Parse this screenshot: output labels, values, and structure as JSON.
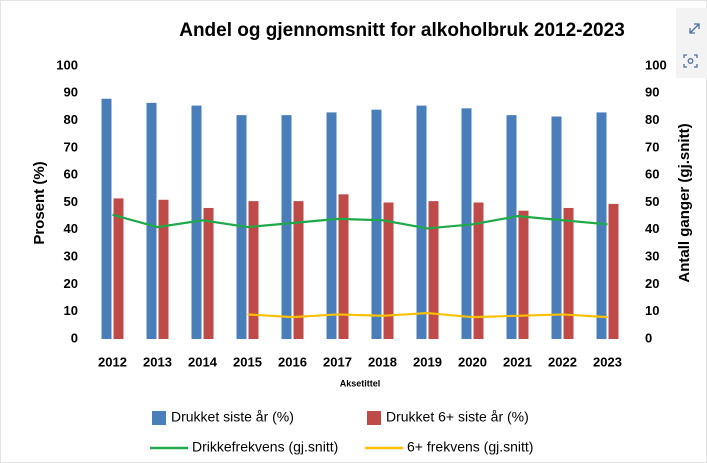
{
  "chart_data": {
    "type": "bar",
    "title": "Andel og gjennomsnitt for alkoholbruk 2012-2023",
    "x_label": "Aksetittel",
    "y_label": "Prosent (%)",
    "y2_label": "Antall ganger (gj.snitt)",
    "categories": [
      "2012",
      "2013",
      "2014",
      "2015",
      "2016",
      "2017",
      "2018",
      "2019",
      "2020",
      "2021",
      "2022",
      "2023"
    ],
    "series": [
      {
        "name": "Drukket siste år (%)",
        "type": "bar",
        "color": "#4a7ebb",
        "values": [
          88,
          86.5,
          85.5,
          82,
          82,
          83,
          84,
          85.5,
          84.5,
          82,
          81.5,
          83
        ]
      },
      {
        "name": "Drukket 6+ siste år (%)",
        "type": "bar",
        "color": "#be4b48",
        "values": [
          51.5,
          51,
          48,
          50.5,
          50.5,
          53,
          50,
          50.5,
          50,
          47,
          48,
          49.5
        ]
      },
      {
        "name": "Drikkefrekvens (gj.snitt)",
        "type": "line",
        "axis": "y2",
        "color": "#1faa4a",
        "values": [
          45.5,
          41,
          43.5,
          41,
          42.5,
          44,
          43.5,
          40.5,
          42,
          45,
          43.5,
          42
        ]
      },
      {
        "name": "6+ frekvens (gj.snitt)",
        "type": "line",
        "axis": "y2",
        "color": "#ffc000",
        "values": [
          null,
          null,
          null,
          9,
          8,
          9,
          8.5,
          9.5,
          8,
          8.5,
          9,
          8
        ]
      }
    ],
    "ylim": [
      0,
      100
    ],
    "yticks": [
      0,
      10,
      20,
      30,
      40,
      50,
      60,
      70,
      80,
      90,
      100
    ],
    "y2lim": [
      0,
      100
    ],
    "y2ticks": [
      0,
      10,
      20,
      30,
      40,
      50,
      60,
      70,
      80,
      90,
      100
    ],
    "grid": false,
    "legend": "bottom"
  }
}
